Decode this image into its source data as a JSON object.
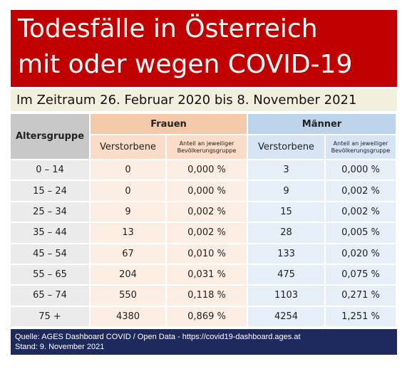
{
  "header": {
    "title_line1": "Todesfälle in Österreich",
    "title_line2": "mit oder wegen COVID-19",
    "subtitle": "Im Zeitraum 26. Februar 2020 bis 8. November 2021"
  },
  "table": {
    "age_header": "Altersgruppe",
    "groups": [
      "Frauen",
      "Männer"
    ],
    "subheaders": [
      "Verstorbene",
      "Anteil an jeweiliger Bevölkerungsgruppe",
      "Verstorbene",
      "Anteil an jeweiliger Bevölkerungsgruppe"
    ],
    "rows": [
      [
        "0 – 14",
        "0",
        "0,000 %",
        "3",
        "0,000 %"
      ],
      [
        "15 – 24",
        "0",
        "0,000 %",
        "9",
        "0,002 %"
      ],
      [
        "25 – 34",
        "9",
        "0,002 %",
        "15",
        "0,002 %"
      ],
      [
        "35 – 44",
        "13",
        "0,002 %",
        "28",
        "0,005 %"
      ],
      [
        "45 – 54",
        "67",
        "0,010 %",
        "133",
        "0,020 %"
      ],
      [
        "55 – 65",
        "204",
        "0,031 %",
        "475",
        "0,075 %"
      ],
      [
        "65 – 74",
        "550",
        "0,118 %",
        "1103",
        "0,271 %"
      ],
      [
        "75 +",
        "4380",
        "0,869 %",
        "4254",
        "1,251 %"
      ]
    ]
  },
  "footer": {
    "source": "Quelle:  AGES Dashboard COVID / Open Data - https://covid19-dashboard.ages.at",
    "date": "Stand:   9. November 2021"
  }
}
